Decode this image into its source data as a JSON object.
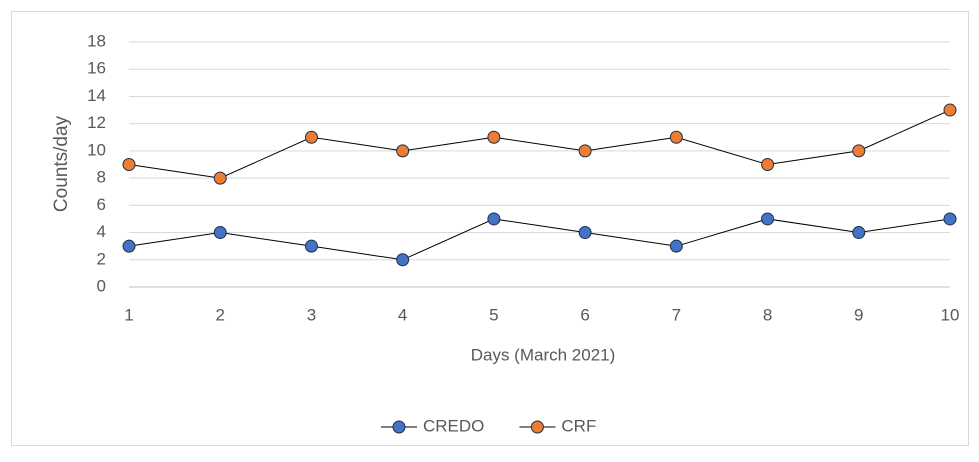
{
  "chart_data": {
    "type": "line",
    "x_label": "Days (March 2021)",
    "y_label": "Counts/day",
    "x": [
      1,
      2,
      3,
      4,
      5,
      6,
      7,
      8,
      9,
      10
    ],
    "xlim": [
      1,
      10
    ],
    "xticks": [
      1,
      2,
      3,
      4,
      5,
      6,
      7,
      8,
      9,
      10
    ],
    "ylim": [
      0,
      18
    ],
    "yticks": [
      0,
      2,
      4,
      6,
      8,
      10,
      12,
      14,
      16,
      18
    ],
    "grid": true,
    "legend": "bottom",
    "series": [
      {
        "name": "CREDO",
        "color": "#4472c4",
        "values": [
          3,
          4,
          3,
          2,
          5,
          4,
          3,
          5,
          4,
          5
        ]
      },
      {
        "name": "CRF",
        "color": "#ed7d31",
        "values": [
          9,
          8,
          11,
          10,
          11,
          10,
          11,
          9,
          10,
          13
        ]
      }
    ]
  }
}
